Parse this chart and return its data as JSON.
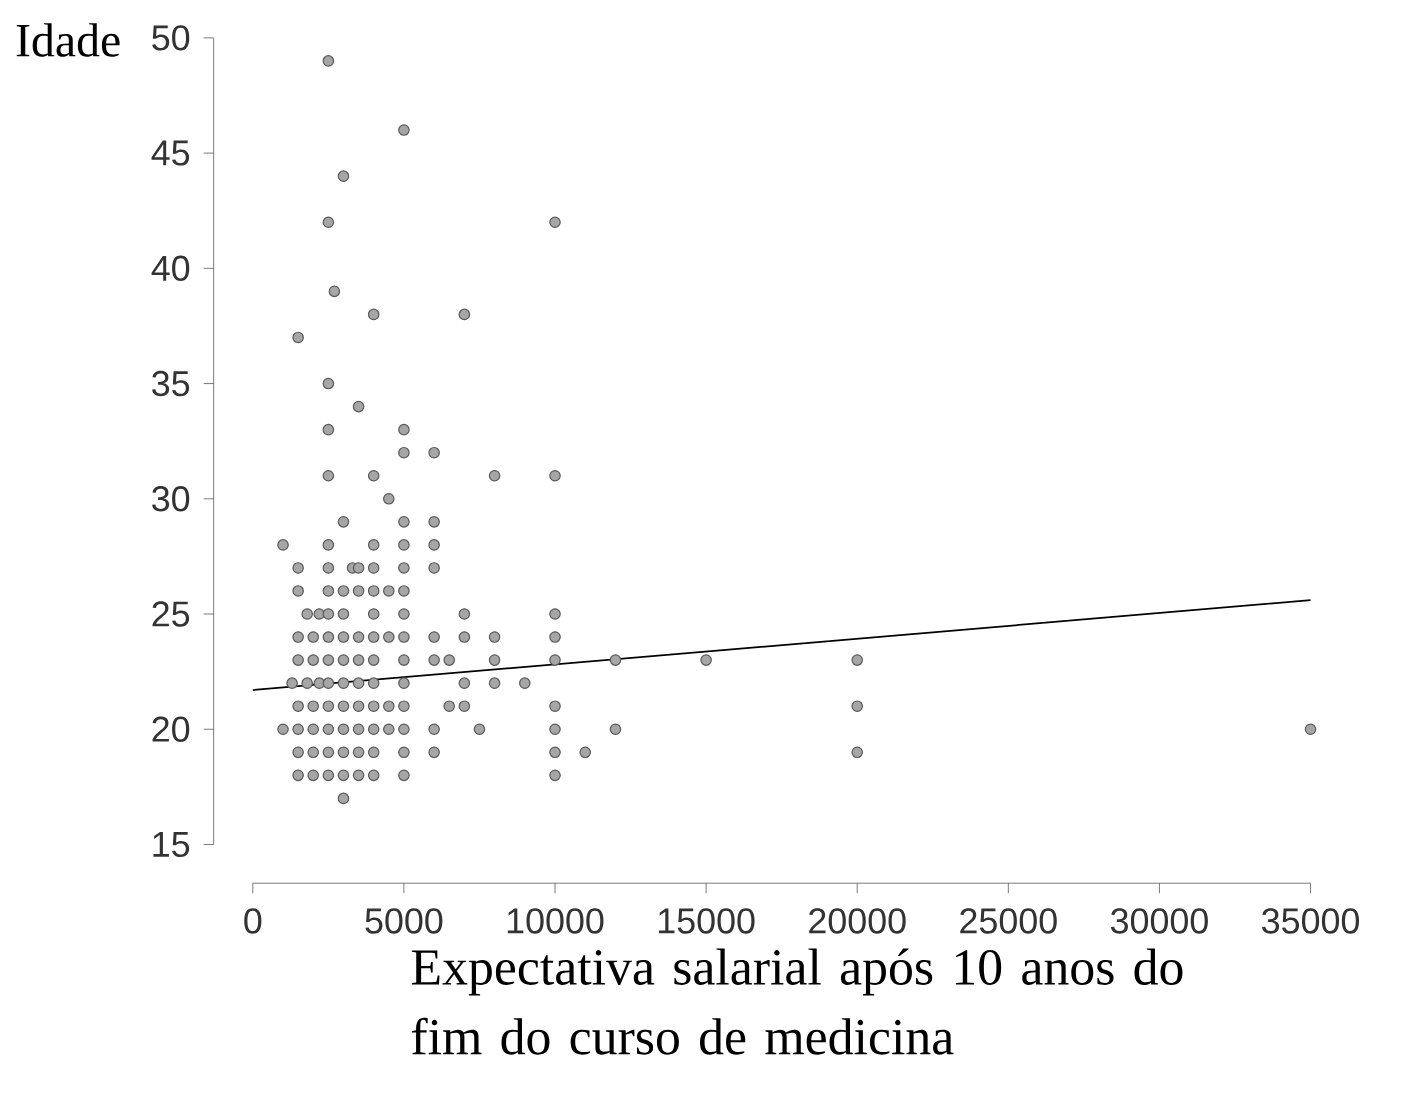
{
  "chart_data": {
    "type": "scatter",
    "xlabel": "Expectativa salarial após 10 anos do fim do curso de medicina",
    "ylabel": "Idade",
    "xlim": [
      0,
      35000
    ],
    "ylim": [
      15,
      50
    ],
    "xticks": [
      0,
      5000,
      10000,
      15000,
      20000,
      25000,
      30000,
      35000
    ],
    "yticks": [
      15,
      20,
      25,
      30,
      35,
      40,
      45,
      50
    ],
    "grid": false,
    "legend": false,
    "series": [
      {
        "color": "#a6a6a6",
        "marker": "circle",
        "x": [
          2500,
          5000,
          3000,
          2500,
          10000,
          2700,
          4000,
          7000,
          1500,
          2500,
          3500,
          2500,
          5000,
          5000,
          6000,
          2500,
          4000,
          8000,
          10000,
          4500,
          3000,
          5000,
          6000,
          1000,
          2500,
          4000,
          5000,
          6000,
          1500,
          2500,
          3300,
          3500,
          4000,
          5000,
          6000,
          1500,
          2500,
          3000,
          3500,
          4000,
          4500,
          5000,
          1800,
          2200,
          2500,
          3000,
          4000,
          5000,
          7000,
          10000,
          1500,
          2000,
          2500,
          3000,
          3500,
          4000,
          4500,
          5000,
          6000,
          7000,
          8000,
          10000,
          1500,
          2000,
          2500,
          3000,
          3500,
          4000,
          5000,
          6000,
          6500,
          8000,
          10000,
          12000,
          15000,
          20000,
          1300,
          1800,
          2200,
          2500,
          3000,
          3500,
          4000,
          5000,
          7000,
          8000,
          9000,
          1500,
          2000,
          2500,
          3000,
          3500,
          4000,
          4500,
          5000,
          6500,
          7000,
          10000,
          20000,
          1000,
          1500,
          2000,
          2500,
          3000,
          3500,
          4000,
          4500,
          5000,
          6000,
          7500,
          10000,
          12000,
          35000,
          1500,
          2000,
          2500,
          3000,
          3500,
          4000,
          5000,
          6000,
          10000,
          11000,
          20000,
          1500,
          2000,
          2500,
          3000,
          3500,
          4000,
          5000,
          10000,
          3000
        ],
        "values": [
          49,
          46,
          44,
          42,
          42,
          39,
          38,
          38,
          37,
          35,
          34,
          33,
          33,
          32,
          32,
          31,
          31,
          31,
          31,
          30,
          29,
          29,
          29,
          28,
          28,
          28,
          28,
          28,
          27,
          27,
          27,
          27,
          27,
          27,
          27,
          26,
          26,
          26,
          26,
          26,
          26,
          26,
          25,
          25,
          25,
          25,
          25,
          25,
          25,
          25,
          24,
          24,
          24,
          24,
          24,
          24,
          24,
          24,
          24,
          24,
          24,
          24,
          23,
          23,
          23,
          23,
          23,
          23,
          23,
          23,
          23,
          23,
          23,
          23,
          23,
          23,
          22,
          22,
          22,
          22,
          22,
          22,
          22,
          22,
          22,
          22,
          22,
          21,
          21,
          21,
          21,
          21,
          21,
          21,
          21,
          21,
          21,
          21,
          21,
          20,
          20,
          20,
          20,
          20,
          20,
          20,
          20,
          20,
          20,
          20,
          20,
          20,
          20,
          19,
          19,
          19,
          19,
          19,
          19,
          19,
          19,
          19,
          19,
          19,
          18,
          18,
          18,
          18,
          18,
          18,
          18,
          18,
          17
        ]
      },
      {
        "type": "line",
        "marker": "none",
        "color": "#000000",
        "x": [
          0,
          35000
        ],
        "values": [
          21.7,
          25.6
        ]
      }
    ]
  }
}
